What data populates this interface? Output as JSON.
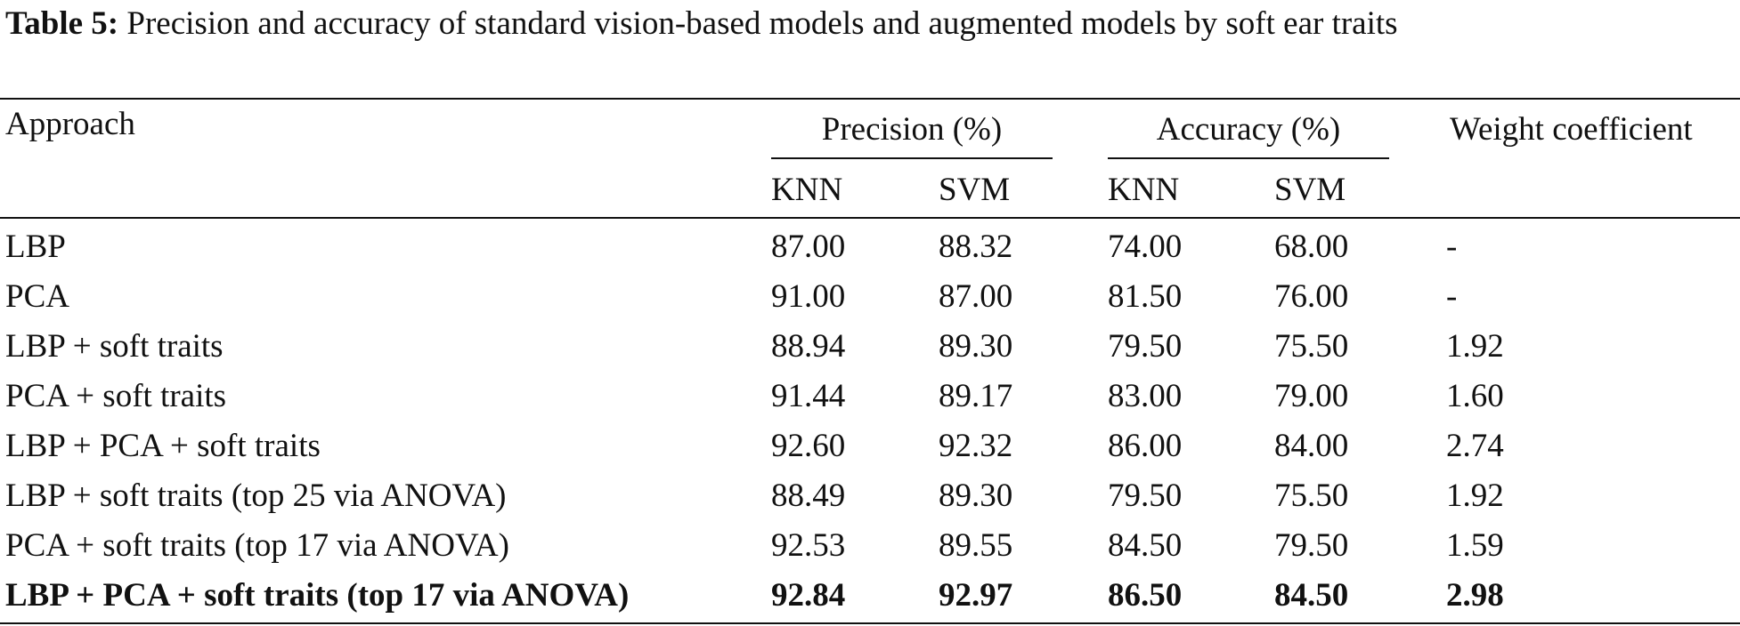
{
  "caption": {
    "label": "Table 5:",
    "text": "Precision and accuracy of standard vision-based models and augmented models by soft ear traits"
  },
  "table": {
    "headers": {
      "approach": "Approach",
      "precision": "Precision (%)",
      "accuracy": "Accuracy (%)",
      "weight": "Weight coefficient",
      "precision_knn": "KNN",
      "precision_svm": "SVM",
      "accuracy_knn": "KNN",
      "accuracy_svm": "SVM"
    },
    "rows": [
      {
        "approach": "LBP",
        "prec_knn": "87.00",
        "prec_svm": "88.32",
        "acc_knn": "74.00",
        "acc_svm": "68.00",
        "weight": "-"
      },
      {
        "approach": "PCA",
        "prec_knn": "91.00",
        "prec_svm": "87.00",
        "acc_knn": "81.50",
        "acc_svm": "76.00",
        "weight": "-"
      },
      {
        "approach": "LBP + soft traits",
        "prec_knn": "88.94",
        "prec_svm": "89.30",
        "acc_knn": "79.50",
        "acc_svm": "75.50",
        "weight": "1.92"
      },
      {
        "approach": "PCA + soft traits",
        "prec_knn": "91.44",
        "prec_svm": "89.17",
        "acc_knn": "83.00",
        "acc_svm": "79.00",
        "weight": "1.60"
      },
      {
        "approach": "LBP + PCA + soft traits",
        "prec_knn": "92.60",
        "prec_svm": "92.32",
        "acc_knn": "86.00",
        "acc_svm": "84.00",
        "weight": "2.74"
      },
      {
        "approach": "LBP + soft traits (top 25 via ANOVA)",
        "prec_knn": "88.49",
        "prec_svm": "89.30",
        "acc_knn": "79.50",
        "acc_svm": "75.50",
        "weight": "1.92"
      },
      {
        "approach": "PCA + soft traits (top 17 via ANOVA)",
        "prec_knn": "92.53",
        "prec_svm": "89.55",
        "acc_knn": "84.50",
        "acc_svm": "79.50",
        "weight": "1.59"
      },
      {
        "approach": "LBP + PCA + soft traits (top 17 via ANOVA)",
        "prec_knn": "92.84",
        "prec_svm": "92.97",
        "acc_knn": "86.50",
        "acc_svm": "84.50",
        "weight": "2.98"
      }
    ]
  }
}
